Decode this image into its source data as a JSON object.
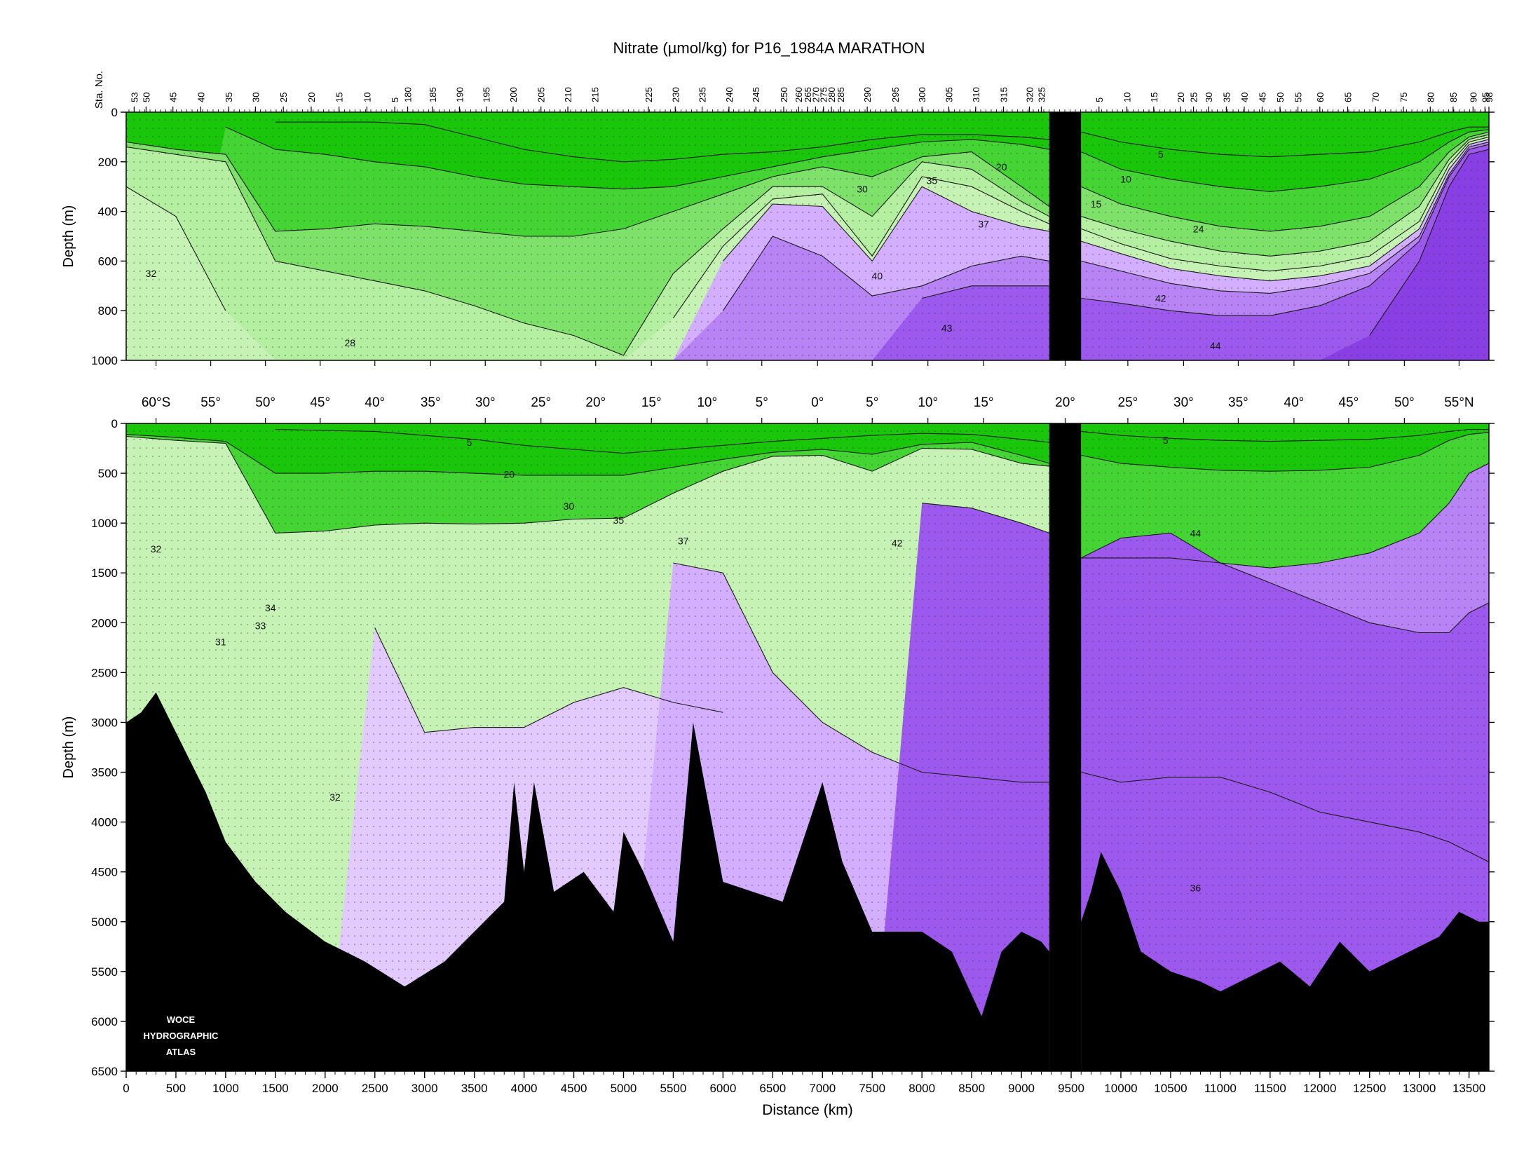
{
  "chart_data": {
    "type": "area",
    "title": "Nitrate (µmol/kg) for P16_1984A MARATHON",
    "colors": {
      "c32": "#c7f2b5",
      "c28": "#b5efa2",
      "c20": "#7ee26a",
      "c10": "#44d433",
      "c5": "#19c60a",
      "c35": "#e2caff",
      "c37": "#d4afff",
      "c40": "#b783f5",
      "c42": "#9d58ee",
      "c44": "#8a3fe4",
      "bottom": "#000000",
      "gap": "#000000"
    },
    "xlabel": "Distance (km)",
    "x_ticks": [
      "0",
      "500",
      "1000",
      "1500",
      "2000",
      "2500",
      "3000",
      "3500",
      "4000",
      "4500",
      "5000",
      "5500",
      "6000",
      "6500",
      "7000",
      "7500",
      "8000",
      "8500",
      "9000",
      "9500",
      "10000",
      "10500",
      "11000",
      "11500",
      "12000",
      "12500",
      "13000",
      "13500"
    ],
    "xlim": [
      0,
      13700
    ],
    "gap_km": [
      9280,
      9600
    ],
    "station_label": "Sta. No.",
    "station_ticks": [
      {
        "label": "53",
        "km": 80
      },
      {
        "label": "50",
        "km": 200
      },
      {
        "label": "45",
        "km": 470
      },
      {
        "label": "40",
        "km": 750
      },
      {
        "label": "35",
        "km": 1030
      },
      {
        "label": "30",
        "km": 1300
      },
      {
        "label": "25",
        "km": 1580
      },
      {
        "label": "20",
        "km": 1860
      },
      {
        "label": "15",
        "km": 2140
      },
      {
        "label": "10",
        "km": 2420
      },
      {
        "label": "5",
        "km": 2700
      },
      {
        "label": "180",
        "km": 2830
      },
      {
        "label": "185",
        "km": 3080
      },
      {
        "label": "190",
        "km": 3350
      },
      {
        "label": "195",
        "km": 3620
      },
      {
        "label": "200",
        "km": 3890
      },
      {
        "label": "205",
        "km": 4170
      },
      {
        "label": "210",
        "km": 4440
      },
      {
        "label": "215",
        "km": 4710
      },
      {
        "label": "225",
        "km": 5250
      },
      {
        "label": "230",
        "km": 5520
      },
      {
        "label": "235",
        "km": 5790
      },
      {
        "label": "240",
        "km": 6060
      },
      {
        "label": "245",
        "km": 6330
      },
      {
        "label": "250",
        "km": 6610
      },
      {
        "label": "260",
        "km": 6760
      },
      {
        "label": "265",
        "km": 6850
      },
      {
        "label": "270",
        "km": 6930
      },
      {
        "label": "275",
        "km": 7010
      },
      {
        "label": "280",
        "km": 7090
      },
      {
        "label": "285",
        "km": 7180
      },
      {
        "label": "290",
        "km": 7450
      },
      {
        "label": "295",
        "km": 7730
      },
      {
        "label": "300",
        "km": 8000
      },
      {
        "label": "305",
        "km": 8270
      },
      {
        "label": "310",
        "km": 8540
      },
      {
        "label": "315",
        "km": 8820
      },
      {
        "label": "320",
        "km": 9080
      },
      {
        "label": "325",
        "km": 9200
      },
      {
        "label": "5",
        "km": 9780
      },
      {
        "label": "10",
        "km": 10060
      },
      {
        "label": "15",
        "km": 10330
      },
      {
        "label": "20",
        "km": 10600
      },
      {
        "label": "25",
        "km": 10730
      },
      {
        "label": "30",
        "km": 10880
      },
      {
        "label": "35",
        "km": 11060
      },
      {
        "label": "40",
        "km": 11240
      },
      {
        "label": "45",
        "km": 11420
      },
      {
        "label": "50",
        "km": 11600
      },
      {
        "label": "55",
        "km": 11780
      },
      {
        "label": "60",
        "km": 12000
      },
      {
        "label": "65",
        "km": 12280
      },
      {
        "label": "70",
        "km": 12560
      },
      {
        "label": "75",
        "km": 12840
      },
      {
        "label": "80",
        "km": 13110
      },
      {
        "label": "85",
        "km": 13340
      },
      {
        "label": "90",
        "km": 13540
      },
      {
        "label": "95",
        "km": 13660
      },
      {
        "label": "98",
        "km": 13700
      }
    ],
    "lat_ticks": [
      {
        "label": "60°S",
        "km": 300
      },
      {
        "label": "55°",
        "km": 850
      },
      {
        "label": "50°",
        "km": 1400
      },
      {
        "label": "45°",
        "km": 1950
      },
      {
        "label": "40°",
        "km": 2500
      },
      {
        "label": "35°",
        "km": 3060
      },
      {
        "label": "30°",
        "km": 3610
      },
      {
        "label": "25°",
        "km": 4170
      },
      {
        "label": "20°",
        "km": 4720
      },
      {
        "label": "15°",
        "km": 5280
      },
      {
        "label": "10°",
        "km": 5840
      },
      {
        "label": "5°",
        "km": 6390
      },
      {
        "label": "0°",
        "km": 6950
      },
      {
        "label": "5°",
        "km": 7500
      },
      {
        "label": "10°",
        "km": 8060
      },
      {
        "label": "15°",
        "km": 8620
      },
      {
        "label": "20°",
        "km": 9440
      },
      {
        "label": "25°",
        "km": 10070
      },
      {
        "label": "30°",
        "km": 10630
      },
      {
        "label": "35°",
        "km": 11180
      },
      {
        "label": "40°",
        "km": 11740
      },
      {
        "label": "45°",
        "km": 12290
      },
      {
        "label": "50°",
        "km": 12850
      },
      {
        "label": "55°N",
        "km": 13400
      }
    ],
    "panels": [
      {
        "ylabel": "Depth (m)",
        "ylim": [
          0,
          1000
        ],
        "y_ticks": [
          "0",
          "200",
          "400",
          "600",
          "800",
          "1000"
        ],
        "contour_labels": [
          {
            "text": "32",
            "km": 250,
            "depth": 650
          },
          {
            "text": "28",
            "km": 2250,
            "depth": 930
          },
          {
            "text": "30",
            "km": 7400,
            "depth": 310
          },
          {
            "text": "35",
            "km": 8100,
            "depth": 275
          },
          {
            "text": "20",
            "km": 8800,
            "depth": 220
          },
          {
            "text": "37",
            "km": 8620,
            "depth": 450
          },
          {
            "text": "40",
            "km": 7550,
            "depth": 660
          },
          {
            "text": "43",
            "km": 8250,
            "depth": 870
          },
          {
            "text": "5",
            "km": 10400,
            "depth": 170
          },
          {
            "text": "10",
            "km": 10050,
            "depth": 270
          },
          {
            "text": "15",
            "km": 9750,
            "depth": 370
          },
          {
            "text": "24",
            "km": 10780,
            "depth": 470
          },
          {
            "text": "42",
            "km": 10400,
            "depth": 750
          },
          {
            "text": "44",
            "km": 10950,
            "depth": 940
          }
        ]
      },
      {
        "ylabel": "Depth (m)",
        "ylim": [
          0,
          6500
        ],
        "y_ticks": [
          "0",
          "500",
          "1000",
          "1500",
          "2000",
          "2500",
          "3000",
          "3500",
          "4000",
          "4500",
          "5000",
          "5500",
          "6000",
          "6500"
        ],
        "contour_labels": [
          {
            "text": "5",
            "km": 3450,
            "depth": 190
          },
          {
            "text": "20",
            "km": 3850,
            "depth": 510
          },
          {
            "text": "30",
            "km": 4450,
            "depth": 830
          },
          {
            "text": "35",
            "km": 4950,
            "depth": 970
          },
          {
            "text": "37",
            "km": 5600,
            "depth": 1180
          },
          {
            "text": "42",
            "km": 7750,
            "depth": 1200
          },
          {
            "text": "44",
            "km": 10750,
            "depth": 1100
          },
          {
            "text": "32",
            "km": 300,
            "depth": 1260
          },
          {
            "text": "34",
            "km": 1450,
            "depth": 1850
          },
          {
            "text": "33",
            "km": 1350,
            "depth": 2030
          },
          {
            "text": "31",
            "km": 950,
            "depth": 2190
          },
          {
            "text": "32",
            "km": 2100,
            "depth": 3750
          },
          {
            "text": "36",
            "km": 10750,
            "depth": 4660
          },
          {
            "text": "5",
            "km": 10450,
            "depth": 170
          }
        ]
      }
    ],
    "upper_isolines_m": {
      "km": [
        0,
        500,
        1000,
        1500,
        2000,
        2500,
        3000,
        3500,
        4000,
        4500,
        5000,
        5500,
        6000,
        6500,
        7000,
        7500,
        8000,
        8500,
        9000,
        9280
      ],
      "n5": [
        null,
        null,
        null,
        40,
        40,
        40,
        50,
        100,
        150,
        180,
        200,
        190,
        170,
        160,
        140,
        110,
        90,
        90,
        100,
        110
      ],
      "n10": [
        null,
        null,
        60,
        150,
        170,
        200,
        220,
        260,
        290,
        300,
        310,
        300,
        260,
        220,
        180,
        150,
        120,
        110,
        130,
        150
      ],
      "n20": [
        120,
        150,
        170,
        480,
        470,
        450,
        460,
        480,
        500,
        500,
        470,
        400,
        330,
        260,
        220,
        260,
        180,
        160,
        300,
        380
      ],
      "n28": [
        140,
        170,
        200,
        600,
        640,
        680,
        720,
        780,
        850,
        900,
        980,
        650,
        470,
        300,
        300,
        420,
        200,
        230,
        360,
        420
      ],
      "n32": [
        300,
        420,
        800,
        1000,
        1000,
        1000,
        1000,
        1000,
        1000,
        1000,
        1000,
        830,
        540,
        350,
        330,
        580,
        260,
        300,
        400,
        450
      ],
      "n37": [
        null,
        null,
        null,
        null,
        null,
        null,
        null,
        null,
        null,
        null,
        null,
        1000,
        600,
        370,
        380,
        600,
        300,
        400,
        460,
        480
      ],
      "n40": [
        null,
        null,
        null,
        null,
        null,
        null,
        null,
        null,
        null,
        null,
        null,
        null,
        800,
        500,
        580,
        740,
        700,
        620,
        580,
        600
      ],
      "n42": [
        null,
        null,
        null,
        null,
        null,
        null,
        null,
        null,
        null,
        null,
        null,
        null,
        null,
        null,
        null,
        null,
        750,
        700,
        700,
        700
      ]
    },
    "upper_isolines_north_m": {
      "km": [
        9600,
        10000,
        10500,
        11000,
        11500,
        12000,
        12500,
        13000,
        13300,
        13500,
        13700
      ],
      "n5": [
        80,
        120,
        150,
        170,
        180,
        170,
        160,
        120,
        80,
        60,
        60
      ],
      "n10": [
        160,
        230,
        270,
        300,
        320,
        300,
        270,
        200,
        120,
        80,
        70
      ],
      "n20": [
        300,
        370,
        420,
        460,
        480,
        460,
        420,
        300,
        160,
        100,
        80
      ],
      "n28": [
        420,
        470,
        520,
        560,
        580,
        560,
        520,
        380,
        190,
        110,
        90
      ],
      "n32": [
        470,
        530,
        590,
        620,
        640,
        620,
        580,
        440,
        210,
        120,
        100
      ],
      "n37": [
        520,
        570,
        630,
        660,
        680,
        660,
        620,
        470,
        230,
        130,
        110
      ],
      "n40": [
        600,
        640,
        690,
        720,
        730,
        700,
        650,
        500,
        250,
        140,
        120
      ],
      "n42": [
        750,
        770,
        800,
        820,
        820,
        780,
        700,
        520,
        260,
        150,
        130
      ],
      "n44": [
        1000,
        1000,
        1000,
        1000,
        1000,
        1000,
        900,
        600,
        300,
        170,
        150
      ]
    },
    "lower_isolines_m": {
      "km": [
        0,
        500,
        1000,
        1500,
        2000,
        2500,
        3000,
        3500,
        4000,
        4500,
        5000,
        5500,
        6000,
        6500,
        7000,
        7500,
        8000,
        8500,
        9000,
        9280
      ],
      "n5": [
        null,
        null,
        null,
        60,
        70,
        80,
        120,
        160,
        220,
        260,
        300,
        260,
        220,
        180,
        150,
        120,
        100,
        110,
        160,
        190
      ],
      "n20": [
        110,
        140,
        180,
        500,
        500,
        480,
        480,
        500,
        520,
        520,
        520,
        440,
        360,
        290,
        260,
        310,
        210,
        190,
        320,
        400
      ],
      "n28": [
        130,
        170,
        200,
        1100,
        1080,
        1020,
        1000,
        1010,
        1000,
        960,
        950,
        700,
        480,
        330,
        320,
        480,
        250,
        260,
        400,
        430
      ],
      "n35": [
        null,
        null,
        null,
        null,
        null,
        2050,
        3100,
        3050,
        3050,
        2800,
        2650,
        2800,
        2900,
        null,
        null,
        null,
        null,
        null,
        null,
        null
      ],
      "n37": [
        null,
        null,
        null,
        null,
        null,
        null,
        null,
        null,
        null,
        null,
        null,
        1400,
        1500,
        2500,
        3000,
        3300,
        3500,
        3550,
        3600,
        3600
      ],
      "n42": [
        null,
        null,
        null,
        null,
        null,
        null,
        null,
        null,
        null,
        null,
        null,
        null,
        null,
        null,
        null,
        null,
        800,
        850,
        1000,
        1100
      ]
    },
    "lower_isolines_north_m": {
      "km": [
        9600,
        10000,
        10500,
        11000,
        11500,
        12000,
        12500,
        13000,
        13300,
        13500,
        13700
      ],
      "n5": [
        80,
        120,
        150,
        170,
        180,
        170,
        160,
        120,
        80,
        60,
        60
      ],
      "n20": [
        320,
        400,
        440,
        470,
        480,
        470,
        440,
        320,
        170,
        110,
        90
      ],
      "n40": [
        1350,
        1350,
        1350,
        1400,
        1450,
        1400,
        1300,
        1100,
        800,
        500,
        400
      ],
      "n42": [
        1350,
        1150,
        1100,
        1400,
        1600,
        1800,
        2000,
        2100,
        2100,
        1900,
        1800
      ],
      "n37": [
        3500,
        3600,
        3550,
        3550,
        3700,
        3900,
        4000,
        4100,
        4200,
        4300,
        4400
      ]
    },
    "bottom_depth_m": {
      "km": [
        0,
        150,
        300,
        450,
        600,
        800,
        1000,
        1300,
        1600,
        2000,
        2400,
        2800,
        3200,
        3500,
        3800,
        3900,
        4000,
        4100,
        4300,
        4600,
        4900,
        5000,
        5200,
        5500,
        5700,
        6000,
        6300,
        6600,
        6800,
        7000,
        7200,
        7500,
        7800,
        8000,
        8300,
        8600,
        8800,
        9000,
        9200,
        9280
      ],
      "depth": [
        3000,
        2900,
        2700,
        3000,
        3300,
        3700,
        4200,
        4600,
        4900,
        5200,
        5400,
        5650,
        5400,
        5100,
        4800,
        3600,
        4500,
        3600,
        4700,
        4500,
        4900,
        4100,
        4500,
        5200,
        3000,
        4600,
        4700,
        4800,
        4200,
        3600,
        4400,
        5100,
        5100,
        5100,
        5300,
        5950,
        5300,
        5100,
        5200,
        5300
      ]
    },
    "bottom_depth_north_m": {
      "km": [
        9600,
        9700,
        9800,
        10000,
        10200,
        10500,
        10800,
        11000,
        11300,
        11600,
        11900,
        12200,
        12500,
        12800,
        13000,
        13200,
        13400,
        13600,
        13700
      ],
      "depth": [
        5000,
        4700,
        4300,
        4700,
        5300,
        5500,
        5600,
        5700,
        5550,
        5400,
        5650,
        5200,
        5500,
        5350,
        5250,
        5150,
        4900,
        5000,
        5000
      ]
    },
    "logo": [
      "WOCE",
      "HYDROGRAPHIC",
      "ATLAS"
    ]
  }
}
